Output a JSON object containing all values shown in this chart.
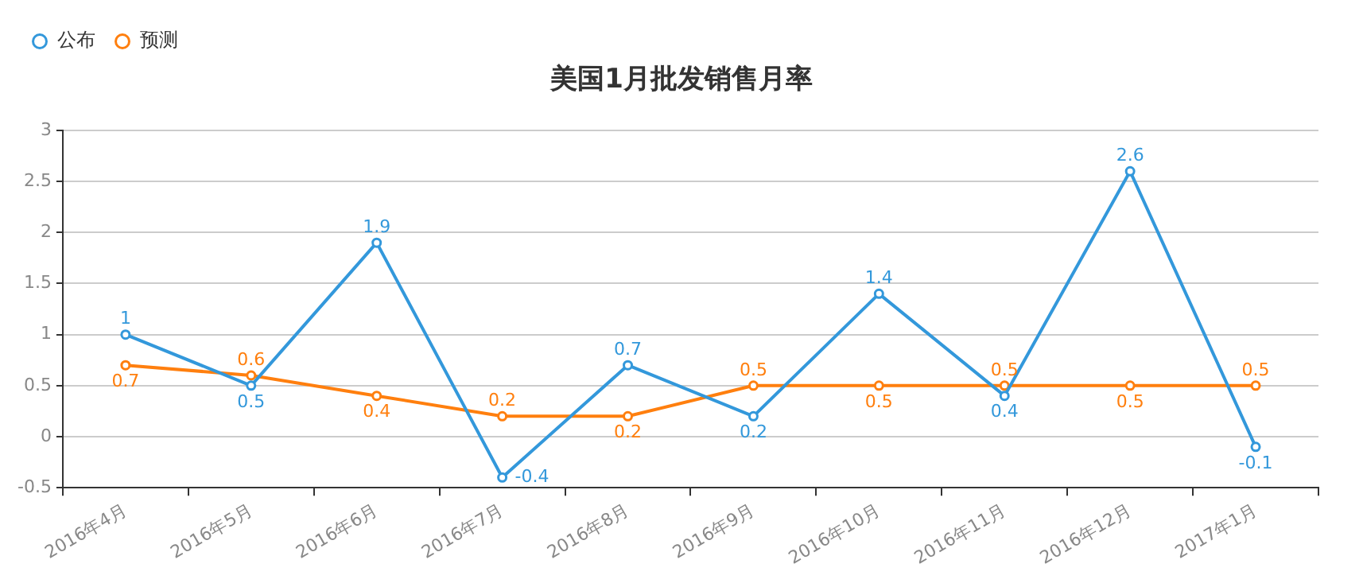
{
  "chart_data": {
    "type": "line",
    "title": "美国1月批发销售月率",
    "categories": [
      "2016年4月",
      "2016年5月",
      "2016年6月",
      "2016年7月",
      "2016年8月",
      "2016年9月",
      "2016年10月",
      "2016年11月",
      "2016年12月",
      "2017年1月"
    ],
    "series": [
      {
        "name": "公布",
        "color": "#3398db",
        "values": [
          1,
          0.5,
          1.9,
          -0.4,
          0.7,
          0.2,
          1.4,
          0.4,
          2.6,
          -0.1
        ]
      },
      {
        "name": "预测",
        "color": "#ff7f0e",
        "values": [
          0.7,
          0.6,
          0.4,
          0.2,
          0.2,
          0.5,
          0.5,
          0.5,
          0.5,
          0.5
        ]
      }
    ],
    "ylim": [
      -0.5,
      3
    ],
    "yticks": [
      -0.5,
      0,
      0.5,
      1,
      1.5,
      2,
      2.5,
      3
    ],
    "grid": "y",
    "legend": "top left",
    "marker": "circle",
    "line_style": "solid",
    "data_labels": true
  }
}
